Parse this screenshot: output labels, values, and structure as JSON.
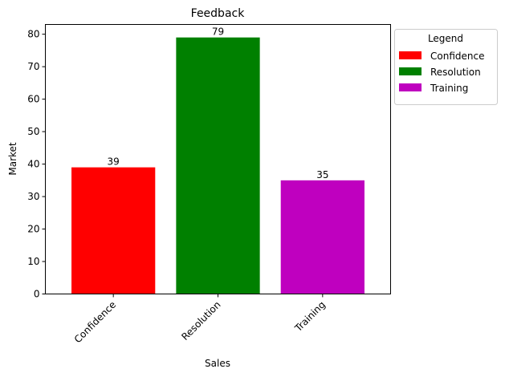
{
  "chart_data": {
    "type": "bar",
    "title": "Feedback",
    "xlabel": "Sales",
    "ylabel": "Market",
    "categories": [
      "Confidence",
      "Resolution",
      "Training"
    ],
    "values": [
      39,
      79,
      35
    ],
    "colors": [
      "#ff0000",
      "#008000",
      "#bf00bf"
    ],
    "ylim": [
      0,
      83
    ],
    "yticks": [
      0,
      10,
      20,
      30,
      40,
      50,
      60,
      70,
      80
    ],
    "grid": false,
    "legend": {
      "title": "Legend",
      "placement": "outside-right",
      "entries": [
        "Confidence",
        "Resolution",
        "Training"
      ]
    }
  }
}
